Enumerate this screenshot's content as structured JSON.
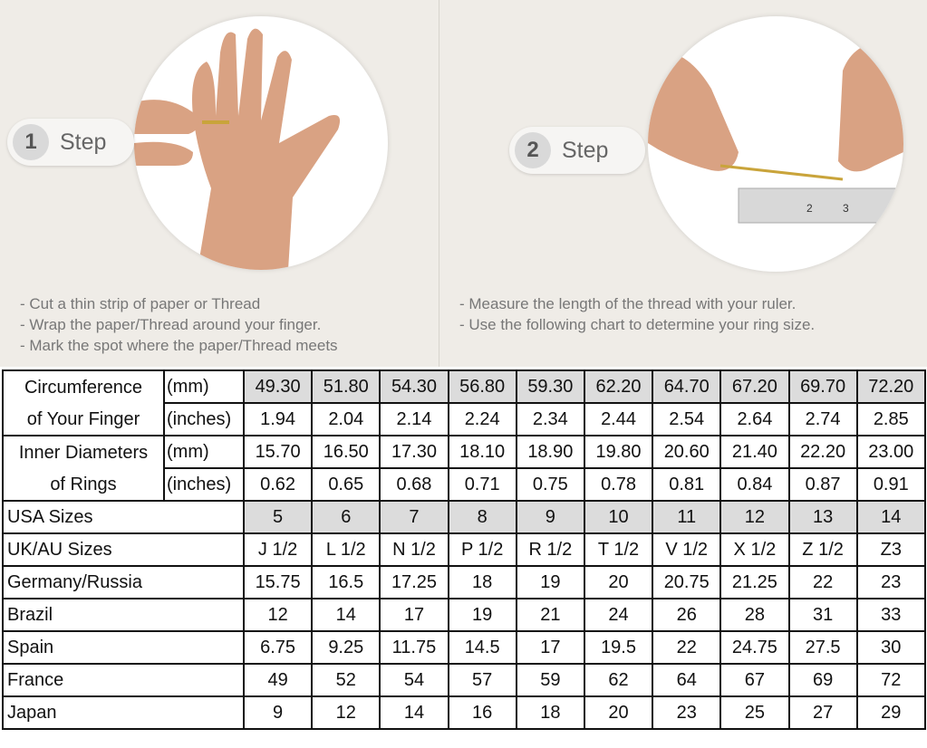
{
  "steps": [
    {
      "number": "1",
      "label": "Step",
      "instructions": [
        "- Cut a thin strip of paper or Thread",
        "- Wrap the paper/Thread around your finger.",
        "- Mark the spot where the paper/Thread meets"
      ]
    },
    {
      "number": "2",
      "label": "Step",
      "instructions": [
        "- Measure the length of the thread with your ruler.",
        "- Use the following chart to determine your ring size."
      ]
    }
  ],
  "images": [
    "hand-with-thread-on-finger",
    "thread-measured-with-ruler"
  ],
  "table": {
    "circumference": {
      "label_line1": "Circumference",
      "label_line2": "of Your Finger",
      "mm_unit": "(mm)",
      "mm": [
        "49.30",
        "51.80",
        "54.30",
        "56.80",
        "59.30",
        "62.20",
        "64.70",
        "67.20",
        "69.70",
        "72.20"
      ],
      "in_unit": "(inches)",
      "inches": [
        "1.94",
        "2.04",
        "2.14",
        "2.24",
        "2.34",
        "2.44",
        "2.54",
        "2.64",
        "2.74",
        "2.85"
      ]
    },
    "diameter": {
      "label_line1": "Inner Diameters",
      "label_line2": "of Rings",
      "mm_unit": "(mm)",
      "mm": [
        "15.70",
        "16.50",
        "17.30",
        "18.10",
        "18.90",
        "19.80",
        "20.60",
        "21.40",
        "22.20",
        "23.00"
      ],
      "in_unit": "(inches)",
      "inches": [
        "0.62",
        "0.65",
        "0.68",
        "0.71",
        "0.75",
        "0.78",
        "0.81",
        "0.84",
        "0.87",
        "0.91"
      ]
    },
    "rows": [
      {
        "label": "USA Sizes",
        "values": [
          "5",
          "6",
          "7",
          "8",
          "9",
          "10",
          "11",
          "12",
          "13",
          "14"
        ]
      },
      {
        "label": "UK/AU Sizes",
        "values": [
          "J 1/2",
          "L 1/2",
          "N 1/2",
          "P 1/2",
          "R 1/2",
          "T 1/2",
          "V 1/2",
          "X 1/2",
          "Z 1/2",
          "Z3"
        ]
      },
      {
        "label": "Germany/Russia",
        "values": [
          "15.75",
          "16.5",
          "17.25",
          "18",
          "19",
          "20",
          "20.75",
          "21.25",
          "22",
          "23"
        ]
      },
      {
        "label": "Brazil",
        "values": [
          "12",
          "14",
          "17",
          "19",
          "21",
          "24",
          "26",
          "28",
          "31",
          "33"
        ]
      },
      {
        "label": "Spain",
        "values": [
          "6.75",
          "9.25",
          "11.75",
          "14.5",
          "17",
          "19.5",
          "22",
          "24.75",
          "27.5",
          "30"
        ]
      },
      {
        "label": "France",
        "values": [
          "49",
          "52",
          "54",
          "57",
          "59",
          "62",
          "64",
          "67",
          "69",
          "72"
        ]
      },
      {
        "label": "Japan",
        "values": [
          "9",
          "12",
          "14",
          "16",
          "18",
          "20",
          "23",
          "25",
          "27",
          "29"
        ]
      }
    ]
  },
  "colors": {
    "background": "#efece7",
    "shaded_cell": "#dcdcdc",
    "border": "#111111"
  }
}
